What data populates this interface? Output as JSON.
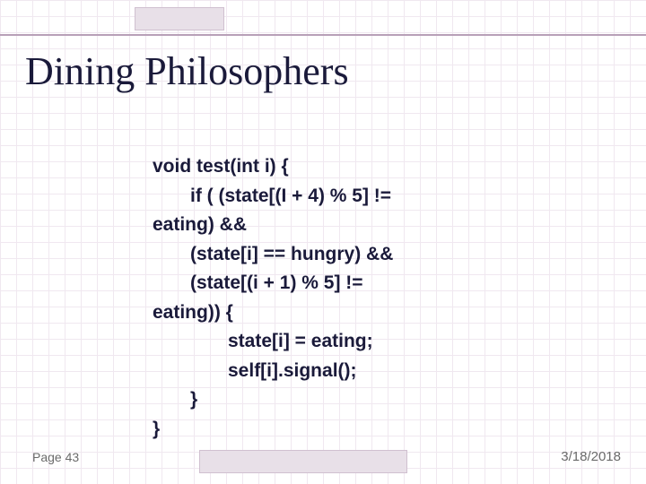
{
  "slide": {
    "title": "Dining Philosophers",
    "title_fontsize": 44,
    "title_color": "#1a1a3a",
    "background_color": "#ffffff",
    "grid_color": "#f0e8f0",
    "rule_color": "#b8a0b8",
    "shadow_box_color": "#e8e0e8"
  },
  "code": {
    "font_family": "Verdana, Arial, sans-serif",
    "font_size": 21,
    "font_weight": "bold",
    "color": "#1a1a3a",
    "lines": [
      {
        "indent": 0,
        "text": "void test(int i) {"
      },
      {
        "indent": 1,
        "text": "if ( (state[(I + 4) % 5] !="
      },
      {
        "indent": 0,
        "text": "eating) &&"
      },
      {
        "indent": 1,
        "text": "(state[i] == hungry) &&"
      },
      {
        "indent": 1,
        "text": "(state[(i + 1) % 5] !="
      },
      {
        "indent": 0,
        "text": "eating)) {"
      },
      {
        "indent": 2,
        "text": "state[i] = eating;"
      },
      {
        "indent": 2,
        "text": "self[i].signal();"
      },
      {
        "indent": 1,
        "text": "}"
      },
      {
        "indent": 0,
        "text": "}"
      }
    ]
  },
  "footer": {
    "page_label": "Page 43",
    "date": "3/18/2018",
    "footer_color": "#6a6a6a",
    "footer_fontsize": 14
  }
}
